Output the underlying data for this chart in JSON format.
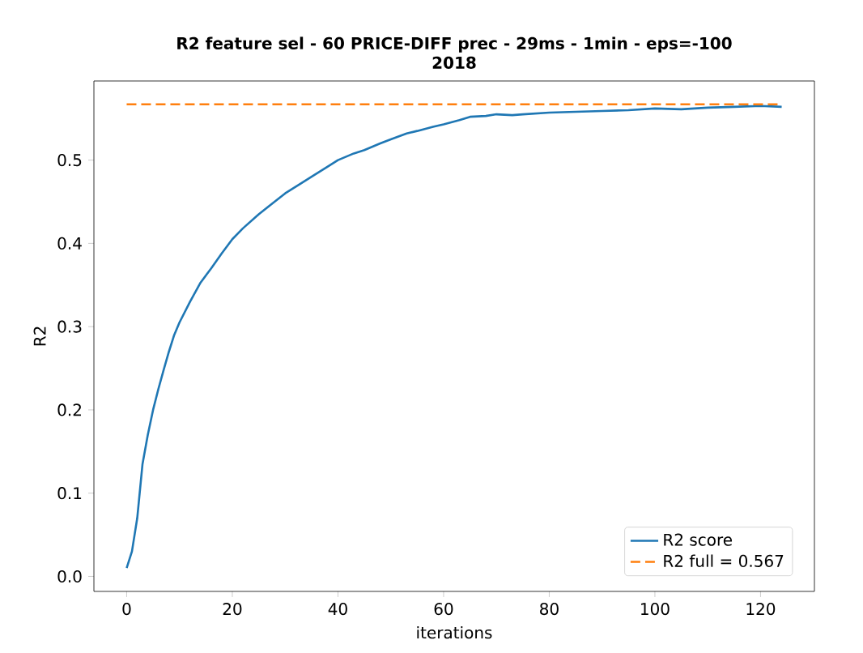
{
  "chart_data": {
    "type": "line",
    "title": "R2 feature sel - 60 PRICE-DIFF prec - 29ms - 1min - eps=-100\n2018",
    "xlabel": "iterations",
    "ylabel": "R2",
    "xlim": [
      -6.2,
      130.2
    ],
    "ylim": [
      -0.018,
      0.595
    ],
    "xticks": [
      0,
      20,
      40,
      60,
      80,
      100,
      120
    ],
    "yticks": [
      {
        "value": 0,
        "label": "0.0"
      },
      0.1,
      0.2,
      0.3,
      0.4,
      0.5
    ],
    "legend": "bottom right",
    "series": [
      {
        "name": "R2 score",
        "color": "#1f77b4",
        "line_style": "solid",
        "x": [
          0,
          1,
          2,
          3,
          4,
          5,
          6,
          7,
          8,
          9,
          10,
          12,
          14,
          16,
          18,
          20,
          22,
          25,
          28,
          30,
          33,
          35,
          38,
          40,
          43,
          45,
          48,
          50,
          53,
          55,
          58,
          60,
          63,
          65,
          68,
          70,
          73,
          75,
          80,
          85,
          90,
          95,
          100,
          105,
          110,
          115,
          120,
          124
        ],
        "values": [
          0.01,
          0.03,
          0.07,
          0.135,
          0.17,
          0.2,
          0.225,
          0.248,
          0.27,
          0.29,
          0.305,
          0.33,
          0.353,
          0.37,
          0.388,
          0.405,
          0.418,
          0.435,
          0.45,
          0.46,
          0.472,
          0.48,
          0.492,
          0.5,
          0.508,
          0.512,
          0.52,
          0.525,
          0.532,
          0.535,
          0.54,
          0.543,
          0.548,
          0.552,
          0.553,
          0.555,
          0.554,
          0.555,
          0.557,
          0.558,
          0.559,
          0.56,
          0.562,
          0.561,
          0.563,
          0.564,
          0.565,
          0.564
        ]
      },
      {
        "name": "R2 full = 0.567",
        "color": "#ff7f0e",
        "line_style": "dashed",
        "x": [
          0,
          124
        ],
        "values": [
          0.567,
          0.567
        ]
      }
    ]
  }
}
